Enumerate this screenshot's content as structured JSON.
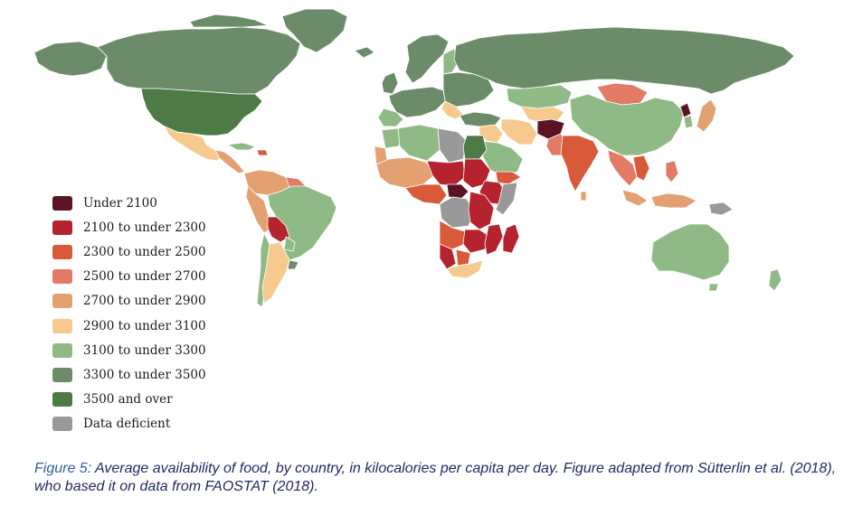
{
  "map": {
    "legend": [
      {
        "label": "Under 2100",
        "color": "#5c1425"
      },
      {
        "label": "2100 to under 2300",
        "color": "#b5232e"
      },
      {
        "label": "2300 to under 2500",
        "color": "#d95a38"
      },
      {
        "label": "2500 to under 2700",
        "color": "#e27a66"
      },
      {
        "label": "2700 to under 2900",
        "color": "#e3a171"
      },
      {
        "label": "2900 to under 3100",
        "color": "#f6ca8e"
      },
      {
        "label": "3100 to under 3300",
        "color": "#8fba86"
      },
      {
        "label": "3300 to under 3500",
        "color": "#6c8c69"
      },
      {
        "label": "3500 and over",
        "color": "#4d7a45"
      },
      {
        "label": "Data deficient",
        "color": "#999999"
      }
    ],
    "ocean_color": "#ffffff",
    "border_color": "#ffffff"
  },
  "caption": {
    "label": "Figure 5:",
    "text": " Average availability of food, by country, in kilocalories per capita per day. Figure adapted from Sütterlin et al. (2018), who based it on data from FAOSTAT (2018)."
  }
}
